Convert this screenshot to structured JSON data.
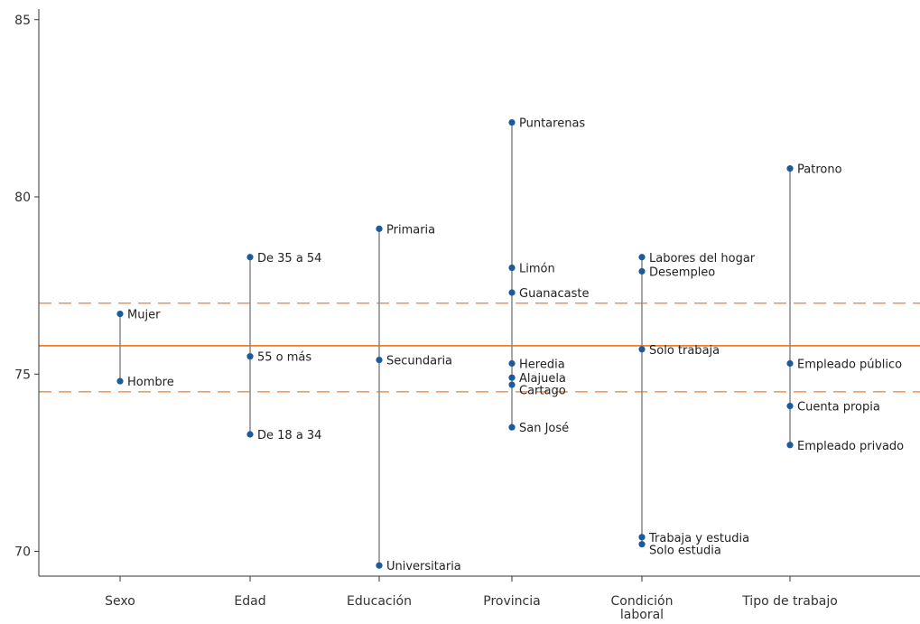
{
  "chart_data": {
    "type": "dot-range",
    "ylim": [
      69.3,
      85.3
    ],
    "yticks": [
      70,
      75,
      80,
      85
    ],
    "reference_lines": {
      "mean": 75.8,
      "lower": 74.5,
      "upper": 77.0,
      "color": "#f07d2a"
    },
    "colors": {
      "point": "#1a5a9e",
      "range_line": "#888888",
      "axis": "#333333"
    },
    "categories": [
      {
        "label": [
          "Sexo"
        ],
        "points": [
          {
            "label": "Mujer",
            "value": 76.7
          },
          {
            "label": "Hombre",
            "value": 74.8
          }
        ]
      },
      {
        "label": [
          "Edad"
        ],
        "points": [
          {
            "label": "De 35 a 54",
            "value": 78.3
          },
          {
            "label": "55 o más",
            "value": 75.5
          },
          {
            "label": "De 18 a 34",
            "value": 73.3
          }
        ]
      },
      {
        "label": [
          "Educación"
        ],
        "points": [
          {
            "label": "Primaria",
            "value": 79.1
          },
          {
            "label": "Secundaria",
            "value": 75.4
          },
          {
            "label": "Universitaria",
            "value": 69.6
          }
        ]
      },
      {
        "label": [
          "Provincia"
        ],
        "points": [
          {
            "label": "Puntarenas",
            "value": 82.1
          },
          {
            "label": "Limón",
            "value": 78.0
          },
          {
            "label": "Guanacaste",
            "value": 77.3
          },
          {
            "label": "Heredia",
            "value": 75.3
          },
          {
            "label": "Alajuela",
            "value": 74.9
          },
          {
            "label": "Cartago",
            "value": 74.7
          },
          {
            "label": "San José",
            "value": 73.5
          }
        ]
      },
      {
        "label": [
          "Condición",
          "laboral"
        ],
        "points": [
          {
            "label": "Labores del hogar",
            "value": 78.3
          },
          {
            "label": "Desempleo",
            "value": 77.9
          },
          {
            "label": "Solo trabaja",
            "value": 75.7
          },
          {
            "label": "Trabaja y estudia",
            "value": 70.4
          },
          {
            "label": "Solo estudia",
            "value": 70.2
          }
        ]
      },
      {
        "label": [
          "Tipo de trabajo"
        ],
        "points": [
          {
            "label": "Patrono",
            "value": 80.8
          },
          {
            "label": "Empleado público",
            "value": 75.3
          },
          {
            "label": "Cuenta propia",
            "value": 74.1
          },
          {
            "label": "Empleado privado",
            "value": 73.0
          }
        ]
      }
    ]
  }
}
